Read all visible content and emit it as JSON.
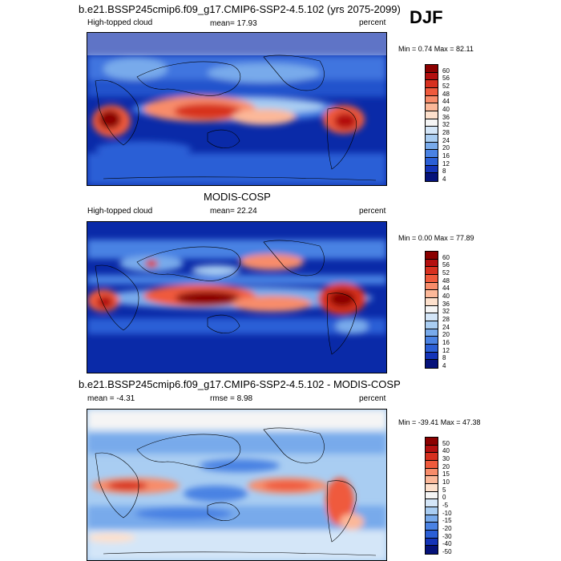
{
  "season": "DJF",
  "panels": [
    {
      "title": "b.e21.BSSP245cmip6.f09_g17.CMIP6-SSP2-4.5.102 (yrs 2075-2099)",
      "variable": "High-topped cloud",
      "stat": "mean=  17.93",
      "units": "percent",
      "minmax": "Min =   0.74 Max =  82.11",
      "levels": [
        "60",
        "56",
        "52",
        "48",
        "44",
        "40",
        "36",
        "32",
        "28",
        "24",
        "20",
        "16",
        "12",
        "8",
        "4"
      ],
      "colors": [
        "#8b0000",
        "#b40f0f",
        "#d7301f",
        "#ef5a3c",
        "#f88c6a",
        "#fcb899",
        "#fde0cc",
        "#f5f5f5",
        "#d4e6f8",
        "#a9cdf2",
        "#78aaeb",
        "#4a82e3",
        "#2b5fd6",
        "#1434b8",
        "#05127a"
      ]
    },
    {
      "title": "MODIS-COSP",
      "variable": "High-topped cloud",
      "stat": "mean=  22.24",
      "units": "percent",
      "minmax": "Min =   0.00 Max =  77.89",
      "levels": [
        "60",
        "56",
        "52",
        "48",
        "44",
        "40",
        "36",
        "32",
        "28",
        "24",
        "20",
        "16",
        "12",
        "8",
        "4"
      ],
      "colors": [
        "#8b0000",
        "#b40f0f",
        "#d7301f",
        "#ef5a3c",
        "#f88c6a",
        "#fcb899",
        "#fde0cc",
        "#f5f5f5",
        "#d4e6f8",
        "#a9cdf2",
        "#78aaeb",
        "#4a82e3",
        "#2b5fd6",
        "#1434b8",
        "#05127a"
      ]
    },
    {
      "title": "b.e21.BSSP245cmip6.f09_g17.CMIP6-SSP2-4.5.102 - MODIS-COSP",
      "stat": "mean =  -4.31",
      "stat2": "rmse =   8.98",
      "units": "percent",
      "minmax": "Min = -39.41 Max =  47.38",
      "levels": [
        "50",
        "40",
        "30",
        "20",
        "15",
        "10",
        "5",
        "0",
        "-5",
        "-10",
        "-15",
        "-20",
        "-30",
        "-40",
        "-50"
      ],
      "colors": [
        "#8b0000",
        "#b40f0f",
        "#d7301f",
        "#ef5a3c",
        "#f88c6a",
        "#fcb899",
        "#fde0cc",
        "#f5f5f5",
        "#d4e6f8",
        "#a9cdf2",
        "#78aaeb",
        "#4a82e3",
        "#2b5fd6",
        "#1434b8",
        "#05127a"
      ]
    }
  ]
}
